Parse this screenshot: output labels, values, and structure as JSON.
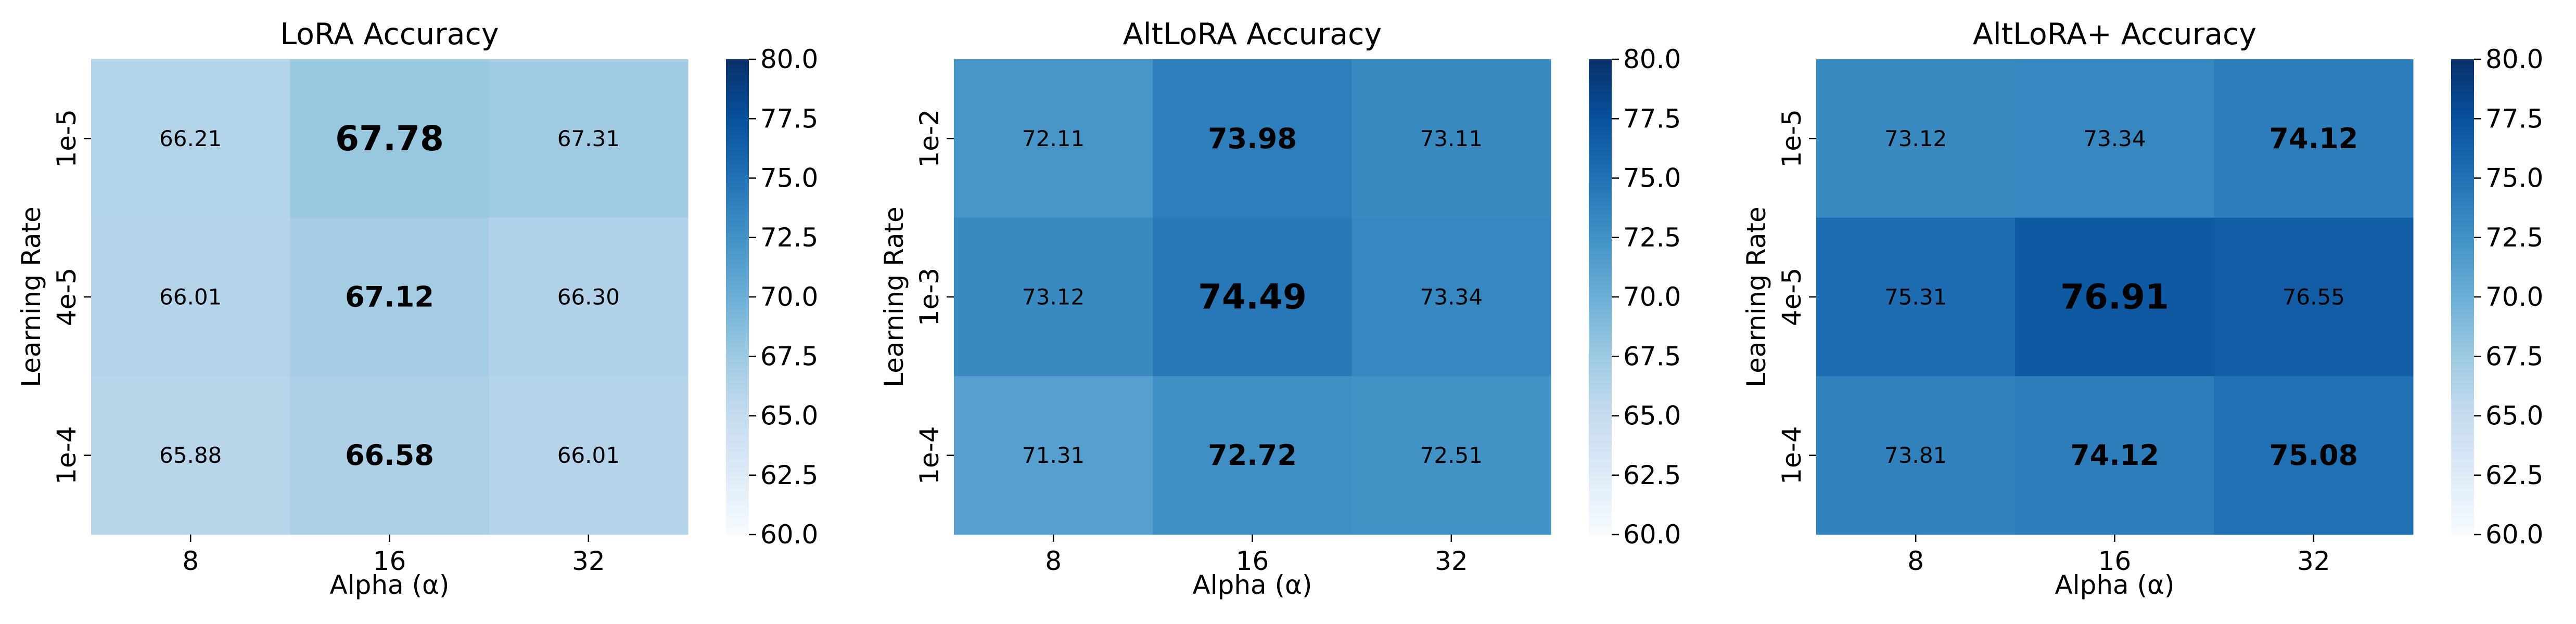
{
  "chart_data": [
    {
      "type": "heatmap",
      "title": "LoRA Accuracy",
      "xlabel": "Alpha (α)",
      "ylabel": "Learning Rate",
      "x_categories": [
        "8",
        "16",
        "32"
      ],
      "y_categories": [
        "1e-5",
        "4e-5",
        "1e-4"
      ],
      "values": [
        [
          66.21,
          67.78,
          67.31
        ],
        [
          66.01,
          67.12,
          66.3
        ],
        [
          65.88,
          66.58,
          66.01
        ]
      ],
      "value_labels": [
        [
          "66.21",
          "67.78",
          "67.31"
        ],
        [
          "66.01",
          "67.12",
          "66.30"
        ],
        [
          "65.88",
          "66.58",
          "66.01"
        ]
      ],
      "highlighted": [
        [
          false,
          true,
          false
        ],
        [
          false,
          true,
          false
        ],
        [
          false,
          true,
          false
        ]
      ],
      "colormap": "Blues",
      "vmin": 60,
      "vmax": 80,
      "colorbar_ticks": [
        "60.0",
        "62.5",
        "65.0",
        "67.5",
        "70.0",
        "72.5",
        "75.0",
        "77.5",
        "80.0"
      ]
    },
    {
      "type": "heatmap",
      "title": "AltLoRA Accuracy",
      "xlabel": "Alpha (α)",
      "ylabel": "Learning Rate",
      "x_categories": [
        "8",
        "16",
        "32"
      ],
      "y_categories": [
        "1e-2",
        "1e-3",
        "1e-4"
      ],
      "values": [
        [
          72.11,
          73.98,
          73.11
        ],
        [
          73.12,
          74.49,
          73.34
        ],
        [
          71.31,
          72.72,
          72.51
        ]
      ],
      "value_labels": [
        [
          "72.11",
          "73.98",
          "73.11"
        ],
        [
          "73.12",
          "74.49",
          "73.34"
        ],
        [
          "71.31",
          "72.72",
          "72.51"
        ]
      ],
      "highlighted": [
        [
          false,
          true,
          false
        ],
        [
          false,
          true,
          false
        ],
        [
          false,
          true,
          false
        ]
      ],
      "colormap": "Blues",
      "vmin": 60,
      "vmax": 80,
      "colorbar_ticks": [
        "60.0",
        "62.5",
        "65.0",
        "67.5",
        "70.0",
        "72.5",
        "75.0",
        "77.5",
        "80.0"
      ]
    },
    {
      "type": "heatmap",
      "title": "AltLoRA+ Accuracy",
      "xlabel": "Alpha (α)",
      "ylabel": "Learning Rate",
      "x_categories": [
        "8",
        "16",
        "32"
      ],
      "y_categories": [
        "1e-5",
        "4e-5",
        "1e-4"
      ],
      "values": [
        [
          73.12,
          73.34,
          74.12
        ],
        [
          75.31,
          76.91,
          76.55
        ],
        [
          73.81,
          74.12,
          75.08
        ]
      ],
      "value_labels": [
        [
          "73.12",
          "73.34",
          "74.12"
        ],
        [
          "75.31",
          "76.91",
          "76.55"
        ],
        [
          "73.81",
          "74.12",
          "75.08"
        ]
      ],
      "highlighted": [
        [
          false,
          false,
          true
        ],
        [
          false,
          true,
          false
        ],
        [
          false,
          true,
          true
        ]
      ],
      "colormap": "Blues",
      "vmin": 60,
      "vmax": 80,
      "colorbar_ticks": [
        "60.0",
        "62.5",
        "65.0",
        "67.5",
        "70.0",
        "72.5",
        "75.0",
        "77.5",
        "80.0"
      ]
    }
  ]
}
